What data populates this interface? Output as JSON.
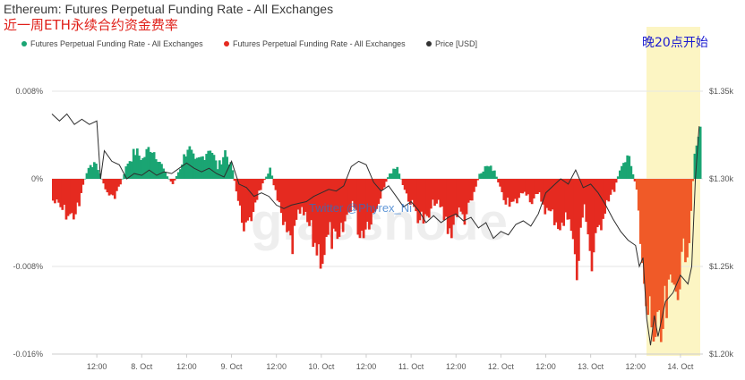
{
  "chart_data": {
    "type": "bar",
    "title": "Ethereum: Futures Perpetual Funding Rate - All Exchanges",
    "subtitle": "近一周ETH永续合约资金费率",
    "annotation": "晚20点开始",
    "watermark_text": "Twitter @Phyrex_Ni",
    "watermark_logo": "glassnode",
    "legend": [
      {
        "label": "Futures Perpetual Funding Rate - All Exchanges",
        "color": "#1aa573"
      },
      {
        "label": "Futures Perpetual Funding Rate - All Exchanges",
        "color": "#e52a20"
      },
      {
        "label": "Price [USD]",
        "color": "#333333"
      }
    ],
    "legend_position": "top-left",
    "y_left_ticks": [
      "0.008%",
      "0%",
      "-0.008%",
      "-0.016%"
    ],
    "y_left_range": [
      -0.016,
      0.008
    ],
    "y_right_ticks": [
      "$1.35k",
      "$1.30k",
      "$1.25k",
      "$1.20k"
    ],
    "y_right_range": [
      1.2,
      1.35
    ],
    "x_ticks": [
      "12:00",
      "8. Oct",
      "12:00",
      "9. Oct",
      "12:00",
      "10. Oct",
      "12:00",
      "11. Oct",
      "12:00",
      "12. Oct",
      "12:00",
      "13. Oct",
      "12:00",
      "14. Oct"
    ],
    "x_range_hours": [
      0,
      174
    ],
    "funding_rate_points": [
      [
        0,
        -0.002
      ],
      [
        3,
        -0.003
      ],
      [
        5,
        -0.0035
      ],
      [
        7,
        -0.0025
      ],
      [
        8,
        -0.0005
      ],
      [
        10,
        0.0015
      ],
      [
        12,
        0.001
      ],
      [
        14,
        -0.001
      ],
      [
        16,
        -0.0018
      ],
      [
        18,
        -0.0005
      ],
      [
        20,
        0.0015
      ],
      [
        22,
        0.0025
      ],
      [
        24,
        0.0018
      ],
      [
        26,
        0.003
      ],
      [
        28,
        0.002
      ],
      [
        30,
        0.0005
      ],
      [
        32,
        -0.0005
      ],
      [
        34,
        0.001
      ],
      [
        36,
        0.003
      ],
      [
        38,
        0.0015
      ],
      [
        40,
        0.002
      ],
      [
        42,
        0.003
      ],
      [
        44,
        0.001
      ],
      [
        46,
        0.0025
      ],
      [
        48,
        0.0008
      ],
      [
        50,
        -0.003
      ],
      [
        52,
        -0.005
      ],
      [
        54,
        -0.002
      ],
      [
        56,
        -0.0005
      ],
      [
        58,
        0.001
      ],
      [
        60,
        -0.002
      ],
      [
        62,
        -0.005
      ],
      [
        64,
        -0.006
      ],
      [
        66,
        -0.003
      ],
      [
        68,
        -0.004
      ],
      [
        70,
        -0.006
      ],
      [
        72,
        -0.007
      ],
      [
        74,
        -0.005
      ],
      [
        76,
        -0.0065
      ],
      [
        78,
        -0.004
      ],
      [
        80,
        -0.002
      ],
      [
        82,
        -0.005
      ],
      [
        84,
        -0.004
      ],
      [
        86,
        -0.003
      ],
      [
        88,
        -0.001
      ],
      [
        90,
        0.0005
      ],
      [
        92,
        0.001
      ],
      [
        94,
        -0.001
      ],
      [
        96,
        -0.0025
      ],
      [
        98,
        -0.0035
      ],
      [
        100,
        -0.004
      ],
      [
        102,
        -0.002
      ],
      [
        104,
        -0.003
      ],
      [
        106,
        -0.005
      ],
      [
        108,
        -0.003
      ],
      [
        110,
        -0.0035
      ],
      [
        112,
        -0.002
      ],
      [
        114,
        0.0005
      ],
      [
        116,
        0.0012
      ],
      [
        118,
        0.0008
      ],
      [
        120,
        -0.0015
      ],
      [
        122,
        -0.0025
      ],
      [
        124,
        -0.002
      ],
      [
        126,
        -0.001
      ],
      [
        128,
        -0.002
      ],
      [
        130,
        -0.0015
      ],
      [
        132,
        -0.003
      ],
      [
        134,
        -0.0035
      ],
      [
        136,
        -0.0045
      ],
      [
        138,
        -0.003
      ],
      [
        140,
        -0.009
      ],
      [
        142,
        -0.002
      ],
      [
        144,
        -0.008
      ],
      [
        146,
        -0.0045
      ],
      [
        148,
        -0.002
      ],
      [
        150,
        -0.001
      ],
      [
        152,
        0.0015
      ],
      [
        154,
        0.0018
      ],
      [
        156,
        -0.001
      ],
      [
        158,
        -0.011
      ],
      [
        160,
        -0.013
      ],
      [
        162,
        -0.016
      ],
      [
        164,
        -0.012
      ],
      [
        166,
        -0.01
      ],
      [
        168,
        -0.008
      ],
      [
        170,
        -0.005
      ],
      [
        171,
        -0.0002
      ],
      [
        172,
        0.004
      ],
      [
        173,
        0.0045
      ]
    ],
    "price_points": [
      [
        0,
        1.337
      ],
      [
        2,
        1.333
      ],
      [
        4,
        1.337
      ],
      [
        6,
        1.331
      ],
      [
        8,
        1.334
      ],
      [
        10,
        1.331
      ],
      [
        12,
        1.333
      ],
      [
        13,
        1.3
      ],
      [
        14,
        1.316
      ],
      [
        16,
        1.31
      ],
      [
        18,
        1.308
      ],
      [
        20,
        1.3
      ],
      [
        22,
        1.303
      ],
      [
        24,
        1.302
      ],
      [
        26,
        1.305
      ],
      [
        28,
        1.302
      ],
      [
        30,
        1.304
      ],
      [
        32,
        1.303
      ],
      [
        34,
        1.306
      ],
      [
        36,
        1.309
      ],
      [
        38,
        1.306
      ],
      [
        40,
        1.304
      ],
      [
        42,
        1.306
      ],
      [
        44,
        1.303
      ],
      [
        46,
        1.301
      ],
      [
        48,
        1.31
      ],
      [
        50,
        1.297
      ],
      [
        52,
        1.295
      ],
      [
        54,
        1.29
      ],
      [
        56,
        1.292
      ],
      [
        58,
        1.29
      ],
      [
        60,
        1.285
      ],
      [
        62,
        1.283
      ],
      [
        64,
        1.285
      ],
      [
        66,
        1.286
      ],
      [
        68,
        1.287
      ],
      [
        70,
        1.29
      ],
      [
        72,
        1.292
      ],
      [
        74,
        1.294
      ],
      [
        76,
        1.293
      ],
      [
        78,
        1.296
      ],
      [
        80,
        1.307
      ],
      [
        82,
        1.31
      ],
      [
        84,
        1.308
      ],
      [
        86,
        1.298
      ],
      [
        88,
        1.293
      ],
      [
        90,
        1.296
      ],
      [
        92,
        1.29
      ],
      [
        94,
        1.284
      ],
      [
        96,
        1.287
      ],
      [
        98,
        1.282
      ],
      [
        100,
        1.275
      ],
      [
        102,
        1.279
      ],
      [
        104,
        1.275
      ],
      [
        106,
        1.278
      ],
      [
        108,
        1.28
      ],
      [
        110,
        1.276
      ],
      [
        112,
        1.278
      ],
      [
        114,
        1.272
      ],
      [
        116,
        1.275
      ],
      [
        118,
        1.266
      ],
      [
        120,
        1.27
      ],
      [
        122,
        1.268
      ],
      [
        124,
        1.274
      ],
      [
        126,
        1.276
      ],
      [
        128,
        1.273
      ],
      [
        130,
        1.28
      ],
      [
        132,
        1.292
      ],
      [
        134,
        1.296
      ],
      [
        136,
        1.3
      ],
      [
        138,
        1.297
      ],
      [
        140,
        1.305
      ],
      [
        142,
        1.295
      ],
      [
        144,
        1.297
      ],
      [
        146,
        1.292
      ],
      [
        148,
        1.285
      ],
      [
        150,
        1.277
      ],
      [
        152,
        1.27
      ],
      [
        154,
        1.265
      ],
      [
        156,
        1.262
      ],
      [
        157,
        1.25
      ],
      [
        158,
        1.255
      ],
      [
        159,
        1.22
      ],
      [
        160,
        1.205
      ],
      [
        161,
        1.222
      ],
      [
        162,
        1.21
      ],
      [
        164,
        1.23
      ],
      [
        166,
        1.235
      ],
      [
        168,
        1.245
      ],
      [
        170,
        1.24
      ],
      [
        171,
        1.25
      ],
      [
        172,
        1.3
      ],
      [
        173,
        1.33
      ]
    ]
  }
}
